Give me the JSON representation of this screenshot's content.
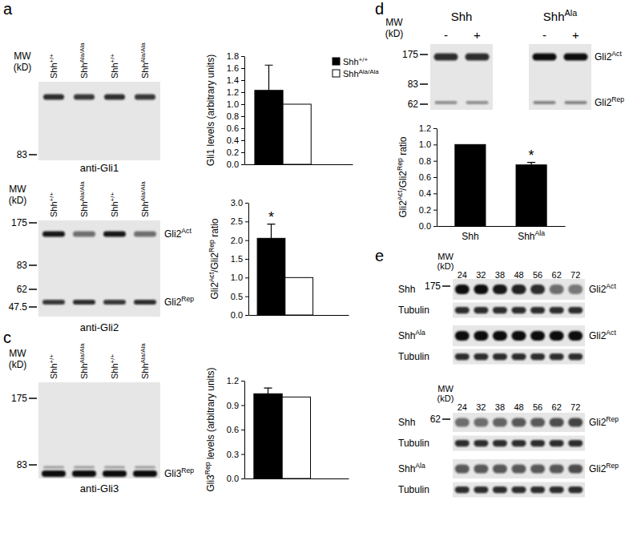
{
  "chart_data": [
    {
      "type": "bar",
      "y_label": "Gli1 levels (arbitrary units)",
      "categories": [
        null
      ],
      "series": [
        {
          "name": [
            {
              "text": "Shh"
            },
            {
              "text": "+/+",
              "sup": true
            }
          ],
          "color": "#000000",
          "values": [
            1.23
          ],
          "errors": [
            0.42
          ]
        },
        {
          "name": [
            {
              "text": "Shh"
            },
            {
              "text": "Ala/Ala",
              "sup": true
            }
          ],
          "color": "#ffffff",
          "values": [
            1.0
          ],
          "errors": [
            null
          ]
        }
      ],
      "ylim": [
        0,
        1.8
      ],
      "yticks": [
        {
          "value": 0,
          "label": "0.0"
        },
        0.2,
        0.4,
        0.6,
        0.8,
        {
          "value": 1,
          "label": "1.0"
        },
        1.2,
        1.4,
        1.6,
        1.8
      ],
      "legend": "top-right"
    },
    {
      "type": "bar",
      "y_label": [
        {
          "text": "Gli2"
        },
        {
          "text": "Act",
          "sup": true
        },
        {
          "text": "/Gli2"
        },
        {
          "text": "Rep",
          "sup": true
        },
        {
          "text": " ratio"
        }
      ],
      "categories": [
        null
      ],
      "series": [
        {
          "color": "#000000",
          "values": [
            2.05
          ],
          "errors": [
            0.38
          ],
          "significance": [
            "*"
          ]
        },
        {
          "color": "#ffffff",
          "values": [
            1.0
          ],
          "errors": [
            null
          ]
        }
      ],
      "ylim": [
        0,
        3
      ],
      "yticks": [
        {
          "value": 0,
          "label": "0.0"
        },
        0.5,
        {
          "value": 1,
          "label": "1.0"
        },
        1.5,
        {
          "value": 2,
          "label": "2.0"
        },
        2.5,
        {
          "value": 3,
          "label": "3.0"
        }
      ]
    },
    {
      "type": "bar",
      "y_label": [
        {
          "text": "Gli3"
        },
        {
          "text": "Rep",
          "sup": true
        },
        {
          "text": " levels (arbitrary units)"
        }
      ],
      "categories": [
        null
      ],
      "series": [
        {
          "color": "#000000",
          "values": [
            1.04
          ],
          "errors": [
            0.07
          ]
        },
        {
          "color": "#ffffff",
          "values": [
            1.0
          ],
          "errors": [
            null
          ]
        }
      ],
      "ylim": [
        0,
        1.2
      ],
      "yticks": [
        {
          "value": 0,
          "label": "0.0"
        },
        0.3,
        0.6,
        0.9,
        1.2
      ]
    },
    {
      "type": "bar",
      "y_label": [
        {
          "text": "Gli2"
        },
        {
          "text": "Act",
          "sup": true
        },
        {
          "text": "/Gli2"
        },
        {
          "text": "Rep",
          "sup": true
        },
        {
          "text": " ratio"
        }
      ],
      "categories": [
        "Shh",
        [
          {
            "text": "Shh"
          },
          {
            "text": "Ala",
            "sup": true
          }
        ]
      ],
      "series": [
        {
          "color": "#000000",
          "values": [
            1.0,
            0.75
          ],
          "errors": [
            null,
            0.03
          ],
          "significance": [
            null,
            "*"
          ]
        }
      ],
      "ylim": [
        0,
        1.2
      ],
      "yticks": [
        {
          "value": 0,
          "label": "0.0"
        },
        0.2,
        0.4,
        0.6,
        0.8,
        {
          "value": 1,
          "label": "1.0"
        },
        1.2
      ]
    }
  ],
  "figure": {
    "panel_labels": [
      "a",
      "c",
      "d",
      "e"
    ],
    "blot_a": {
      "mw_title": [
        "MW",
        "(kD)"
      ],
      "lanes": [
        [
          {
            "text": "Shh"
          },
          {
            "text": "+/+",
            "sup": true
          }
        ],
        [
          {
            "text": "Shh"
          },
          {
            "text": "Ala/Ala",
            "sup": true
          }
        ],
        [
          {
            "text": "Shh"
          },
          {
            "text": "+/+",
            "sup": true
          }
        ],
        [
          {
            "text": "Shh"
          },
          {
            "text": "Ala/Ala",
            "sup": true
          }
        ]
      ],
      "mw_markers": [
        83
      ],
      "antibody": "anti-Gli1"
    },
    "blot_b": {
      "mw_title": [
        "MW",
        "(kD)"
      ],
      "lanes": [
        [
          {
            "text": "Shh"
          },
          {
            "text": "+/+",
            "sup": true
          }
        ],
        [
          {
            "text": "Shh"
          },
          {
            "text": "Ala/Ala",
            "sup": true
          }
        ],
        [
          {
            "text": "Shh"
          },
          {
            "text": "+/+",
            "sup": true
          }
        ],
        [
          {
            "text": "Shh"
          },
          {
            "text": "Ala/Ala",
            "sup": true
          }
        ]
      ],
      "mw_markers": [
        175,
        83,
        62,
        47.5
      ],
      "bands": [
        [
          {
            "text": "Gli2"
          },
          {
            "text": "Act",
            "sup": true
          }
        ],
        [
          {
            "text": "Gli2"
          },
          {
            "text": "Rep",
            "sup": true
          }
        ]
      ],
      "antibody": "anti-Gli2"
    },
    "blot_c": {
      "mw_title": [
        "MW",
        "(kD)"
      ],
      "lanes": [
        [
          {
            "text": "Shh"
          },
          {
            "text": "+/+",
            "sup": true
          }
        ],
        [
          {
            "text": "Shh"
          },
          {
            "text": "Ala/Ala",
            "sup": true
          }
        ],
        [
          {
            "text": "Shh"
          },
          {
            "text": "+/+",
            "sup": true
          }
        ],
        [
          {
            "text": "Shh"
          },
          {
            "text": "Ala/Ala",
            "sup": true
          }
        ]
      ],
      "mw_markers": [
        175,
        83
      ],
      "bands": [
        [
          {
            "text": "Gli3"
          },
          {
            "text": "Rep",
            "sup": true
          }
        ]
      ],
      "antibody": "anti-Gli3"
    },
    "blot_d": {
      "mw_title": [
        "MW",
        "(kD)"
      ],
      "groups": [
        {
          "name": "Shh",
          "lanes": [
            "-",
            "+"
          ]
        },
        {
          "name": [
            {
              "text": "Shh"
            },
            {
              "text": "Ala",
              "sup": true
            }
          ],
          "lanes": [
            "-",
            "+"
          ]
        }
      ],
      "mw_markers": [
        175,
        83,
        62
      ],
      "bands": [
        [
          {
            "text": "Gli2"
          },
          {
            "text": "Act",
            "sup": true
          }
        ],
        [
          {
            "text": "Gli2"
          },
          {
            "text": "Rep",
            "sup": true
          }
        ]
      ]
    },
    "blot_e": {
      "sections": [
        {
          "mw_title": [
            "MW",
            "(kD)"
          ],
          "times": [
            24,
            32,
            38,
            48,
            56,
            62,
            72
          ],
          "mw_marker": 175,
          "rows": [
            {
              "left": "Shh",
              "right": [
                {
                  "text": "Gli2"
                },
                {
                  "text": "Act",
                  "sup": true
                }
              ]
            },
            {
              "left": "Tubulin"
            },
            {
              "left": [
                {
                  "text": "Shh"
                },
                {
                  "text": "Ala",
                  "sup": true
                }
              ],
              "right": [
                {
                  "text": "Gli2"
                },
                {
                  "text": "Act",
                  "sup": true
                }
              ]
            },
            {
              "left": "Tubulin"
            }
          ]
        },
        {
          "mw_title": [
            "MW",
            "(kD)"
          ],
          "times": [
            24,
            32,
            38,
            48,
            56,
            62,
            72
          ],
          "mw_marker": 62,
          "rows": [
            {
              "left": "Shh",
              "right": [
                {
                  "text": "Gli2"
                },
                {
                  "text": "Rep",
                  "sup": true
                }
              ]
            },
            {
              "left": "Tubulin"
            },
            {
              "left": [
                {
                  "text": "Shh"
                },
                {
                  "text": "Ala",
                  "sup": true
                }
              ],
              "right": [
                {
                  "text": "Gli2"
                },
                {
                  "text": "Rep",
                  "sup": true
                }
              ]
            },
            {
              "left": "Tubulin"
            }
          ]
        }
      ]
    }
  }
}
